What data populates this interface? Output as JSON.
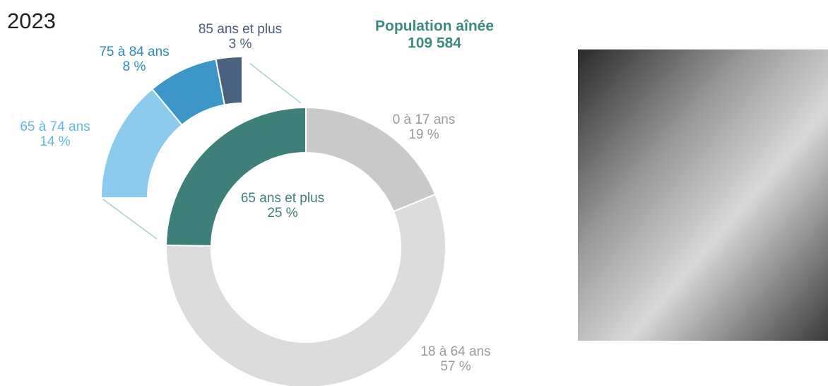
{
  "chart_data": {
    "type": "donut",
    "title": "2023",
    "total_label": "Population aînée",
    "total": {
      "value": 109584,
      "label": "109 584"
    },
    "categories": [
      "0 à 17 ans",
      "18 à 64 ans",
      "65 ans et plus"
    ],
    "values": [
      19,
      57,
      25
    ],
    "value_labels": [
      "19 %",
      "57 %",
      "25 %"
    ],
    "colors": [
      "#c9c9c9",
      "#dcdcdc",
      "#3e7f7a"
    ],
    "label_colors": [
      "#9a9a9a",
      "#9a9a9a",
      "#3e7f7a"
    ],
    "breakdown": {
      "type": "arc",
      "categories": [
        "65 à 74 ans",
        "75 à 84 ans",
        "85 ans et plus"
      ],
      "values": [
        14,
        8,
        3
      ],
      "value_labels": [
        "14 %",
        "8 %",
        "3 %"
      ],
      "colors": [
        "#8ccbee",
        "#3d96c8",
        "#4a6282"
      ],
      "label_colors": [
        "#62b8e6",
        "#2f8bc0",
        "#4a5c78"
      ]
    }
  }
}
